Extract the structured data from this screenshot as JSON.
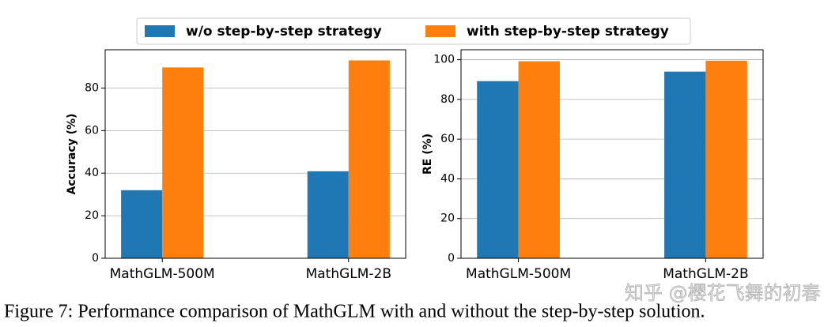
{
  "chart_data": [
    {
      "type": "bar",
      "ylabel": "Accuracy (%)",
      "categories": [
        "MathGLM-500M",
        "MathGLM-2B"
      ],
      "series": [
        {
          "name": "w/o step-by-step strategy",
          "color": "#1f77b4",
          "values": [
            32.0,
            40.9
          ]
        },
        {
          "name": "with step-by-step strategy",
          "color": "#ff7f0e",
          "values": [
            89.7,
            93.0
          ]
        }
      ],
      "ylim": [
        0,
        98
      ],
      "yticks": [
        0,
        20,
        40,
        60,
        80
      ],
      "grid": true
    },
    {
      "type": "bar",
      "ylabel": "RE (%)",
      "categories": [
        "MathGLM-500M",
        "MathGLM-2B"
      ],
      "series": [
        {
          "name": "w/o step-by-step strategy",
          "color": "#1f77b4",
          "values": [
            89.2,
            94.0
          ]
        },
        {
          "name": "with step-by-step strategy",
          "color": "#ff7f0e",
          "values": [
            99.2,
            99.5
          ]
        }
      ],
      "ylim": [
        0,
        105
      ],
      "yticks": [
        0,
        20,
        40,
        60,
        80,
        100
      ],
      "grid": true
    }
  ],
  "caption": "Figure 7: Performance comparison of MathGLM with and without the step-by-step solution.",
  "watermark": "知乎 @樱花飞舞的初春"
}
